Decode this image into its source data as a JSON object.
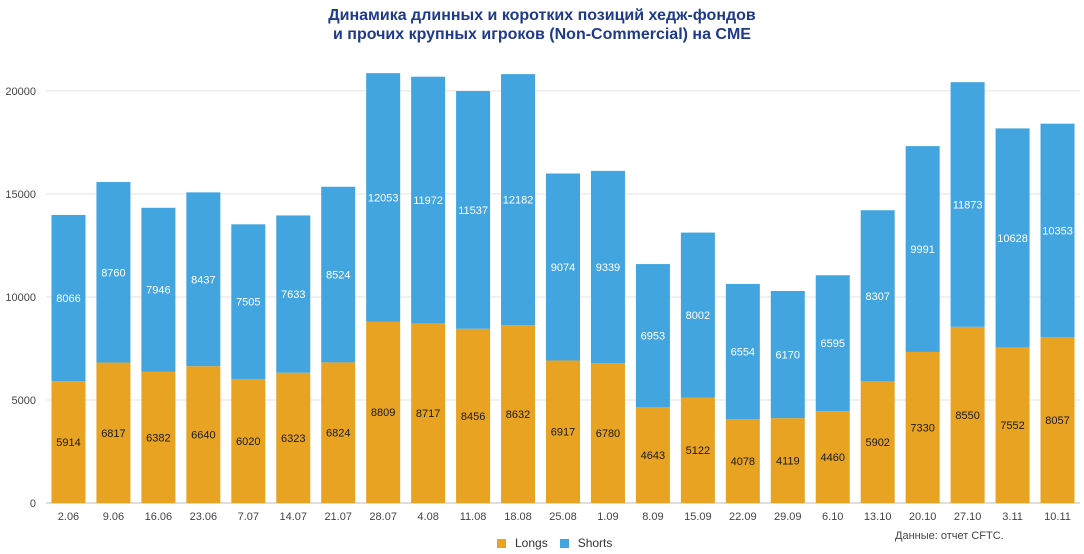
{
  "chart_data": {
    "type": "bar",
    "stacked": true,
    "title_lines": [
      "Динамика длинных и коротких позиций хедж-фондов",
      "и прочих крупных игроков (Non-Commercial) на CME"
    ],
    "categories": [
      "2.06",
      "9.06",
      "16.06",
      "23.06",
      "7.07",
      "14.07",
      "21.07",
      "28.07",
      "4.08",
      "11.08",
      "18.08",
      "25.08",
      "1.09",
      "8.09",
      "15.09",
      "22.09",
      "29.09",
      "6.10",
      "13.10",
      "20.10",
      "27.10",
      "3.11",
      "10.11"
    ],
    "series": [
      {
        "name": "Longs",
        "color": "#e8a323",
        "values": [
          5914,
          6817,
          6382,
          6640,
          6020,
          6323,
          6824,
          8809,
          8717,
          8456,
          8632,
          6917,
          6780,
          4643,
          5122,
          4078,
          4119,
          4460,
          5902,
          7330,
          8550,
          7552,
          8057
        ]
      },
      {
        "name": "Shorts",
        "color": "#42a5df",
        "values": [
          8066,
          8760,
          7946,
          8437,
          7505,
          7633,
          8524,
          12053,
          11972,
          11537,
          12182,
          9074,
          9339,
          6953,
          8002,
          6554,
          6170,
          6595,
          8307,
          9991,
          11873,
          10628,
          10353
        ]
      }
    ],
    "y_ticks": [
      0,
      5000,
      10000,
      15000,
      20000
    ],
    "ylim": [
      0,
      21500
    ],
    "legend_position": "bottom-center",
    "source_note": "Данные: отчет CFTC."
  }
}
